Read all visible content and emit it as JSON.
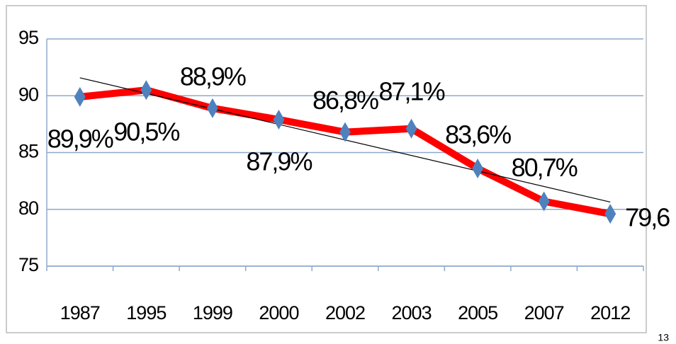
{
  "chart_data": {
    "type": "line",
    "categories": [
      "1987",
      "1995",
      "1999",
      "2000",
      "2002",
      "2003",
      "2005",
      "2007",
      "2012"
    ],
    "values": [
      89.9,
      90.5,
      88.9,
      87.9,
      86.8,
      87.1,
      83.6,
      80.7,
      79.6
    ],
    "value_labels": [
      "89,9%",
      "90,5%",
      "88,9%",
      "87,9%",
      "86,8%",
      "87,1%",
      "83,6%",
      "80,7%",
      "79,6"
    ],
    "color": "#ff0000",
    "marker_color": "#4f81bd",
    "trendline": true,
    "ylim": [
      75,
      95
    ],
    "yticks": [
      75,
      80,
      85,
      90,
      95
    ],
    "grid": true
  },
  "page_number": "13"
}
